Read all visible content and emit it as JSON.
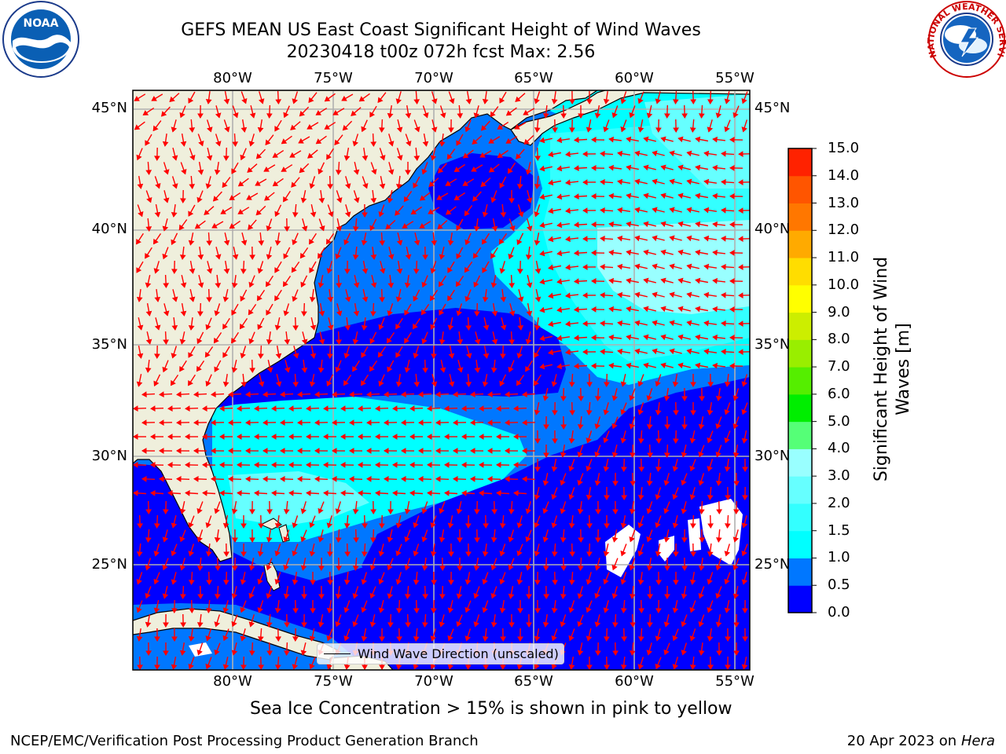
{
  "title_line1": "GEFS MEAN US East Coast Significant Height of Wind Waves",
  "title_line2": "20230418 t00z 072h fcst   Max: 2.56",
  "subtitle": "Sea Ice Concentration > 15% is shown in pink to yellow",
  "footer_left": "NCEP/EMC/Verification Post Processing Product Generation Branch",
  "footer_right_date": "20 Apr 2023 on ",
  "footer_right_host": "Hera",
  "legend_text": "Wind Wave Direction (unscaled)",
  "lon_labels": [
    "80°W",
    "75°W",
    "70°W",
    "65°W",
    "60°W",
    "55°W"
  ],
  "lat_labels": [
    "45°N",
    "40°N",
    "35°N",
    "30°N",
    "25°N"
  ],
  "colorbar": {
    "label_line1": "Significant Height of Wind",
    "label_line2": "Waves [m]",
    "ticks": [
      "0.0",
      "0.5",
      "1.0",
      "1.5",
      "2.0",
      "3.0",
      "4.0",
      "5.0",
      "6.0",
      "7.0",
      "8.0",
      "9.0",
      "10.0",
      "11.0",
      "12.0",
      "13.0",
      "14.0",
      "15.0"
    ],
    "colors": [
      "#0000ff",
      "#0077ff",
      "#00ffff",
      "#33ffff",
      "#66ffff",
      "#99ffff",
      "#55ff77",
      "#00ee00",
      "#55ee00",
      "#99ee00",
      "#ccee00",
      "#ffff00",
      "#ffdd00",
      "#ffaa00",
      "#ff7700",
      "#ff5500",
      "#ff2200",
      "#ff0000"
    ]
  },
  "colors": {
    "land": "#efefdc",
    "ocean_low": "#0000ff",
    "ocean_mid": "#0077ff",
    "ocean_cyan": "#00ffff",
    "ocean_light": "#99ffff",
    "arrow": "#ff0000",
    "grid": "#b0b0b0"
  },
  "logos": {
    "noaa_text": "NOAA",
    "nws_text": "NATIONAL WEATHER SERVICE"
  }
}
